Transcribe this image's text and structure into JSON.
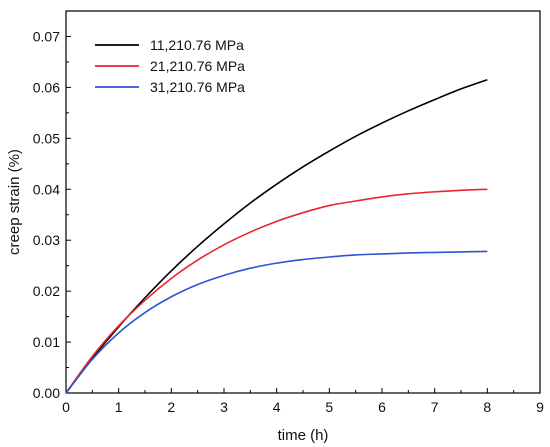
{
  "chart_data": {
    "type": "line",
    "xlabel": "time (h)",
    "ylabel": "creep strain (%)",
    "xlim": [
      0,
      9
    ],
    "ylim": [
      0,
      0.075
    ],
    "xticks": [
      "0",
      "1",
      "2",
      "3",
      "4",
      "5",
      "6",
      "7",
      "8",
      "9"
    ],
    "yticks": [
      "0.00",
      "0.01",
      "0.02",
      "0.03",
      "0.04",
      "0.05",
      "0.06",
      "0.07"
    ],
    "grid": false,
    "legend_position": "top-left",
    "x": [
      0,
      0.5,
      1,
      1.5,
      2,
      2.5,
      3,
      3.5,
      4,
      4.5,
      5,
      5.5,
      6,
      6.5,
      7,
      7.5,
      8
    ],
    "series": [
      {
        "name": "11,210.76 MPa",
        "color": "#000000",
        "values": [
          0,
          0.0068,
          0.013,
          0.0187,
          0.024,
          0.0288,
          0.0332,
          0.0373,
          0.041,
          0.0444,
          0.0475,
          0.0504,
          0.053,
          0.0554,
          0.0576,
          0.0597,
          0.0615
        ]
      },
      {
        "name": "21,210.76 MPa",
        "color": "#e8262c",
        "values": [
          0,
          0.0072,
          0.0132,
          0.0182,
          0.0225,
          0.0261,
          0.0291,
          0.0316,
          0.0337,
          0.0354,
          0.0368,
          0.0377,
          0.0385,
          0.0391,
          0.0395,
          0.0398,
          0.04
        ]
      },
      {
        "name": "31,210.76 MPa",
        "color": "#2b55d6",
        "values": [
          0,
          0.0066,
          0.0118,
          0.0158,
          0.0189,
          0.0213,
          0.0231,
          0.0245,
          0.0255,
          0.0262,
          0.0267,
          0.0271,
          0.0273,
          0.0275,
          0.0276,
          0.0277,
          0.0278
        ]
      }
    ]
  }
}
